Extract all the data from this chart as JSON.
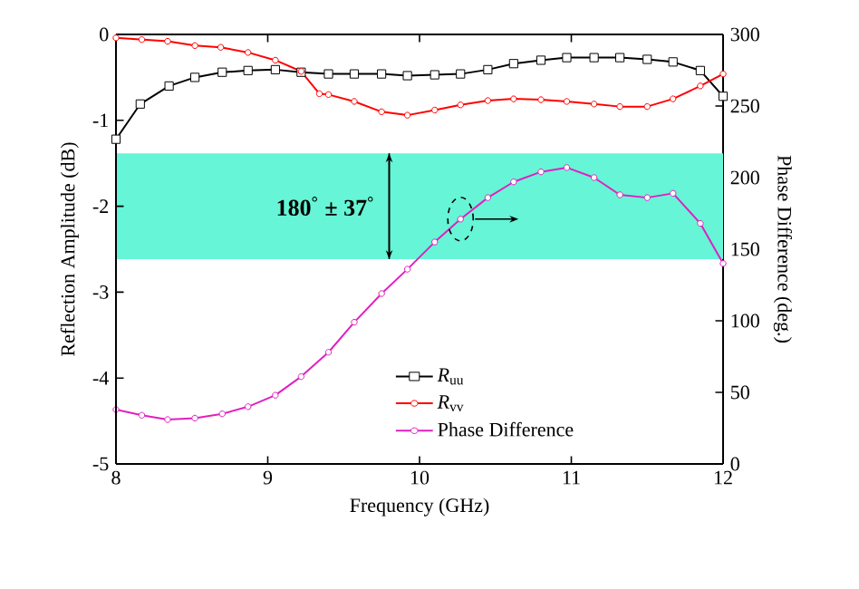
{
  "chart_data": {
    "type": "line",
    "xlabel": "Frequency (GHz)",
    "ylabel": "Reflection Amplitude (dB)",
    "y2label": "Phase Difference (deg.)",
    "xlim": [
      8,
      12
    ],
    "xticks": [
      8,
      9,
      10,
      11,
      12
    ],
    "ylim": [
      -5,
      0
    ],
    "yticks": [
      -5,
      -4,
      -3,
      -2,
      -1,
      0
    ],
    "y2lim": [
      0,
      300
    ],
    "y2ticks": [
      0,
      50,
      100,
      150,
      200,
      250,
      300
    ],
    "legend": "bottom",
    "grid": false,
    "line_style": "solid",
    "annotations": [
      "180$^{°}$ ± 37$^{°}$"
    ],
    "bands": [
      {
        "axis": "y2",
        "from": 143,
        "to": 217,
        "color": "#66f5d6"
      }
    ],
    "series": [
      {
        "name": "*R*$_{uu}$",
        "color": "#000000",
        "marker": "square",
        "x": [
          8,
          8.16,
          8.35,
          8.52,
          8.7,
          8.87,
          9.05,
          9.22,
          9.4,
          9.57,
          9.75,
          9.92,
          10.1,
          10.27,
          10.45,
          10.62,
          10.8,
          10.97,
          11.15,
          11.32,
          11.5,
          11.67,
          11.85,
          12
        ],
        "values": [
          -1.22,
          -0.81,
          -0.6,
          -0.5,
          -0.44,
          -0.42,
          -0.41,
          -0.44,
          -0.46,
          -0.46,
          -0.46,
          -0.48,
          -0.47,
          -0.46,
          -0.41,
          -0.34,
          -0.3,
          -0.27,
          -0.27,
          -0.27,
          -0.29,
          -0.32,
          -0.42,
          -0.72
        ]
      },
      {
        "name": "*R*$_{vv}$",
        "color": "#ff0000",
        "marker": "circle",
        "x": [
          8,
          8.17,
          8.34,
          8.52,
          8.69,
          8.87,
          9.05,
          9.22,
          9.34,
          9.4,
          9.57,
          9.75,
          9.92,
          10.1,
          10.27,
          10.45,
          10.62,
          10.8,
          10.97,
          11.15,
          11.32,
          11.5,
          11.67,
          11.85,
          12
        ],
        "values": [
          -0.04,
          -0.06,
          -0.08,
          -0.13,
          -0.15,
          -0.21,
          -0.3,
          -0.43,
          -0.69,
          -0.7,
          -0.78,
          -0.9,
          -0.94,
          -0.88,
          -0.82,
          -0.77,
          -0.75,
          -0.76,
          -0.78,
          -0.81,
          -0.84,
          -0.84,
          -0.75,
          -0.6,
          -0.46
        ]
      },
      {
        "name": "Phase Difference",
        "color": "#e020c0",
        "marker": "circle",
        "axis": "y2",
        "x": [
          8,
          8.17,
          8.34,
          8.52,
          8.7,
          8.87,
          9.05,
          9.22,
          9.4,
          9.57,
          9.75,
          9.92,
          10.1,
          10.27,
          10.45,
          10.62,
          10.8,
          10.97,
          11.15,
          11.32,
          11.5,
          11.67,
          11.85,
          12
        ],
        "values": [
          38,
          34,
          31,
          32,
          35,
          40,
          48,
          61,
          78,
          99,
          119,
          136,
          155,
          171,
          186,
          197,
          204,
          207,
          200,
          188,
          186,
          189,
          168,
          140
        ]
      }
    ]
  }
}
